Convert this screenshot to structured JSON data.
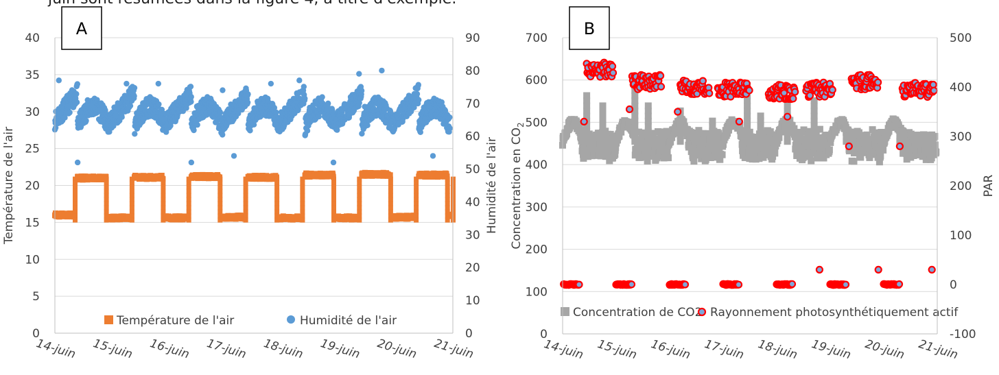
{
  "header_text": "juin sont résumées dans la figure 4, à titre d'exemple.",
  "colors": {
    "temperature": "#ED7D31",
    "humidity": "#5B9BD5",
    "co2": "#A6A6A6",
    "par_fill": "#7FA7D9",
    "par_stroke": "#FF0000",
    "grid": "#D9D9D9",
    "axis": "#BFBFBF",
    "text": "#404040"
  },
  "chart_data": [
    {
      "type": "scatter",
      "panel_label": "A",
      "x_ticks": [
        "14-juin",
        "15-juin",
        "16-juin",
        "17-juin",
        "18-juin",
        "19-juin",
        "20-juin",
        "21-juin"
      ],
      "ylabel": "Température de l'air",
      "y2label": "Humidité de l'air",
      "ylim": [
        0,
        40
      ],
      "y_ticks": [
        0,
        5,
        10,
        15,
        20,
        25,
        30,
        35,
        40
      ],
      "y2lim": [
        0,
        90
      ],
      "y2_ticks": [
        0,
        10,
        20,
        30,
        40,
        50,
        60,
        70,
        80,
        90
      ],
      "grid": true,
      "legend_position": "bottom",
      "series": [
        {
          "name": "Température de l'air",
          "axis": "left",
          "marker": "square",
          "day_min": 15.5,
          "day_max": 21.2,
          "segments": [
            [
              14.0,
              14.35,
              16.0
            ],
            [
              14.4,
              14.9,
              21.0
            ],
            [
              14.95,
              15.35,
              15.6
            ],
            [
              15.4,
              15.9,
              21.1
            ],
            [
              15.95,
              16.35,
              15.6
            ],
            [
              16.4,
              16.9,
              21.2
            ],
            [
              16.95,
              17.35,
              15.7
            ],
            [
              17.4,
              17.9,
              21.1
            ],
            [
              17.95,
              18.35,
              15.6
            ],
            [
              18.4,
              18.9,
              21.4
            ],
            [
              18.95,
              19.35,
              15.6
            ],
            [
              19.4,
              19.9,
              21.5
            ],
            [
              19.95,
              20.35,
              15.7
            ],
            [
              20.4,
              20.9,
              21.4
            ],
            [
              20.95,
              21.0,
              16.0
            ]
          ]
        },
        {
          "name": "Humidité de l'air",
          "axis": "right",
          "marker": "circle",
          "daily_low": 60,
          "daily_high": 73,
          "peaks": [
            [
              14.07,
              77
            ],
            [
              14.4,
              52
            ],
            [
              15.26,
              76
            ],
            [
              15.82,
              76
            ],
            [
              16.4,
              52
            ],
            [
              16.95,
              74
            ],
            [
              17.15,
              54
            ],
            [
              17.8,
              76
            ],
            [
              18.3,
              77
            ],
            [
              18.9,
              52
            ],
            [
              19.35,
              79
            ],
            [
              19.45,
              69
            ],
            [
              19.75,
              80
            ],
            [
              20.65,
              54
            ]
          ]
        }
      ]
    },
    {
      "type": "scatter",
      "panel_label": "B",
      "x_ticks": [
        "14-juin",
        "15-juin",
        "16-juin",
        "17-juin",
        "18-juin",
        "19-juin",
        "20-juin",
        "21-juin"
      ],
      "ylabel": "Concentration en CO",
      "ylabel_subscript": "2",
      "y2label": "PAR",
      "ylim": [
        0,
        700
      ],
      "y_ticks": [
        0,
        100,
        200,
        300,
        400,
        500,
        600,
        700
      ],
      "y2lim": [
        -100,
        500
      ],
      "y2_ticks": [
        -100,
        0,
        100,
        200,
        300,
        400,
        500
      ],
      "grid": true,
      "legend_position": "bottom",
      "series": [
        {
          "name": "Concentration de CO2",
          "axis": "left",
          "marker": "square",
          "baseline": 415,
          "daily_peak": 510,
          "spikes": [
            [
              14.45,
              570
            ],
            [
              14.75,
              550
            ],
            [
              15.35,
              590
            ],
            [
              15.6,
              540
            ],
            [
              16.2,
              530
            ],
            [
              16.8,
              510
            ],
            [
              17.45,
              590
            ],
            [
              17.7,
              520
            ],
            [
              18.2,
              540
            ],
            [
              18.7,
              560
            ],
            [
              19.3,
              470
            ],
            [
              20.3,
              470
            ]
          ]
        },
        {
          "name": "Rayonnement photosynthétiquement actif",
          "axis": "right",
          "marker": "circle",
          "night_value": 0,
          "day_clusters": [
            [
              14.45,
              14.95,
              435
            ],
            [
              15.3,
              15.85,
              410
            ],
            [
              16.2,
              16.75,
              400
            ],
            [
              16.9,
              17.5,
              395
            ],
            [
              17.85,
              18.35,
              390
            ],
            [
              18.55,
              19.05,
              395
            ],
            [
              19.4,
              19.9,
              410
            ],
            [
              20.35,
              20.95,
              395
            ]
          ],
          "isolated": [
            [
              14.4,
              330
            ],
            [
              15.25,
              355
            ],
            [
              16.15,
              350
            ],
            [
              17.3,
              330
            ],
            [
              18.2,
              340
            ],
            [
              18.8,
              30
            ],
            [
              19.35,
              280
            ],
            [
              19.9,
              30
            ],
            [
              20.3,
              280
            ],
            [
              20.9,
              30
            ]
          ]
        }
      ]
    }
  ]
}
